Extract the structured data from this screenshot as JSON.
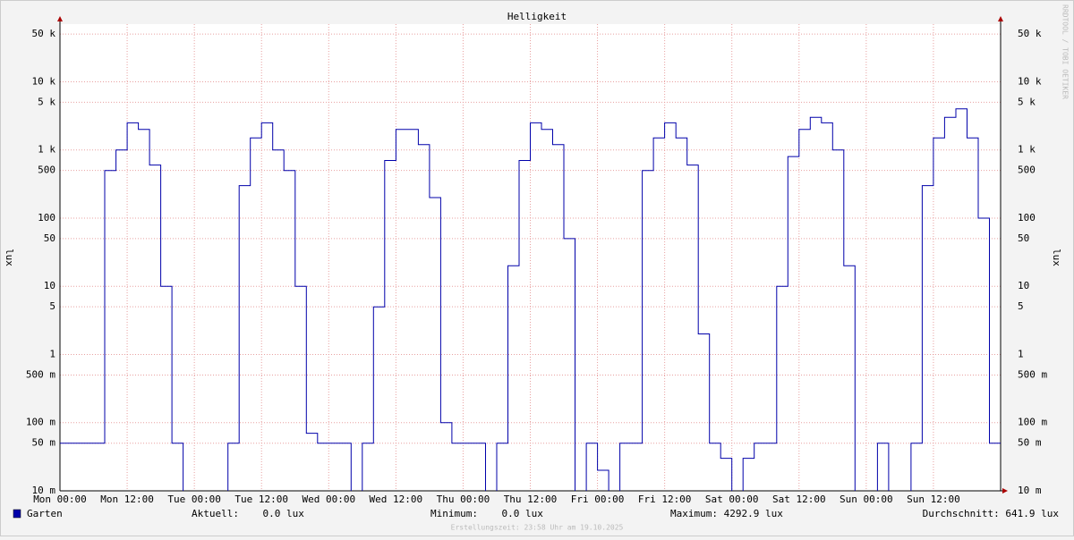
{
  "chart_data": {
    "type": "line",
    "title": "Helligkeit",
    "y_label": "lux",
    "watermark": "RRDTOOL / TOBI OETIKER",
    "footer": "Erstellungszeit: 23:58 Uhr am 19.10.2025",
    "log_scale": true,
    "grid": true,
    "xlim": [
      0,
      168
    ],
    "xticks": [
      {
        "value": 0,
        "label": "Mon 00:00"
      },
      {
        "value": 12,
        "label": "Mon 12:00"
      },
      {
        "value": 24,
        "label": "Tue 00:00"
      },
      {
        "value": 36,
        "label": "Tue 12:00"
      },
      {
        "value": 48,
        "label": "Wed 00:00"
      },
      {
        "value": 60,
        "label": "Wed 12:00"
      },
      {
        "value": 72,
        "label": "Thu 00:00"
      },
      {
        "value": 84,
        "label": "Thu 12:00"
      },
      {
        "value": 96,
        "label": "Fri 00:00"
      },
      {
        "value": 108,
        "label": "Fri 12:00"
      },
      {
        "value": 120,
        "label": "Sat 00:00"
      },
      {
        "value": 132,
        "label": "Sat 12:00"
      },
      {
        "value": 144,
        "label": "Sun 00:00"
      },
      {
        "value": 156,
        "label": "Sun 12:00"
      }
    ],
    "ylim": [
      0.01,
      70000
    ],
    "yticks": [
      {
        "value": 0.01,
        "label": "10 m"
      },
      {
        "value": 0.05,
        "label": "50 m"
      },
      {
        "value": 0.1,
        "label": "100 m"
      },
      {
        "value": 0.5,
        "label": "500 m"
      },
      1,
      5,
      10,
      50,
      100,
      500,
      {
        "value": 1000,
        "label": "1 k"
      },
      {
        "value": 5000,
        "label": "5 k"
      },
      {
        "value": 10000,
        "label": "10 k"
      },
      {
        "value": 50000,
        "label": "50 k"
      }
    ],
    "x": [
      0,
      2,
      4,
      6,
      8,
      10,
      12,
      14,
      16,
      18,
      20,
      22,
      24,
      26,
      28,
      30,
      32,
      34,
      36,
      38,
      40,
      42,
      44,
      46,
      48,
      50,
      52,
      54,
      56,
      58,
      60,
      62,
      64,
      66,
      68,
      70,
      72,
      74,
      76,
      78,
      80,
      82,
      84,
      86,
      88,
      90,
      92,
      94,
      96,
      98,
      100,
      102,
      104,
      106,
      108,
      110,
      112,
      114,
      116,
      118,
      120,
      122,
      124,
      126,
      128,
      130,
      132,
      134,
      136,
      138,
      140,
      142,
      144,
      146,
      148,
      150,
      152,
      154,
      156,
      158,
      160,
      162,
      164,
      166,
      168
    ],
    "series": [
      {
        "name": "Garten",
        "color": "#0000aa",
        "values": [
          0.05,
          0.05,
          0.05,
          0.05,
          500,
          1000,
          2500,
          2000,
          600,
          10,
          0.05,
          0,
          0,
          0,
          0,
          0.05,
          300,
          1500,
          2500,
          1000,
          500,
          10,
          0.07,
          0.05,
          0.05,
          0.05,
          0,
          0.05,
          5,
          700,
          2000,
          2000,
          1200,
          200,
          0.1,
          0.05,
          0.05,
          0.05,
          0,
          0.05,
          20,
          700,
          2500,
          2000,
          1200,
          50,
          0,
          0.05,
          0.02,
          0,
          0.05,
          0.05,
          500,
          1500,
          2500,
          1500,
          600,
          2,
          0.05,
          0.03,
          0,
          0.03,
          0.05,
          0.05,
          10,
          800,
          2000,
          3000,
          2500,
          1000,
          20,
          0,
          0,
          0.05,
          0,
          0,
          0.05,
          300,
          1500,
          3000,
          4000,
          1500,
          100,
          0.05,
          0.05
        ]
      }
    ],
    "stats": [
      "Aktuell:    0.0 lux",
      "Minimum:    0.0 lux",
      "Maximum: 4292.9 lux",
      "Durchschnitt: 641.9 lux"
    ]
  }
}
